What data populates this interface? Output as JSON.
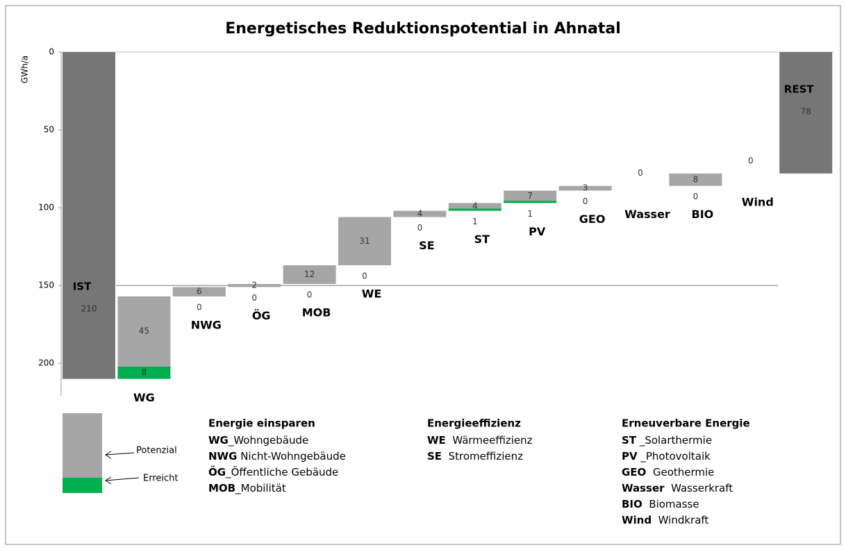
{
  "chart_data": {
    "type": "waterfall",
    "title": "Energetisches Reduktionspotential in Ahnatal",
    "y_label": "GWh/a",
    "categories": [
      "IST",
      "WG",
      "NWG",
      "ÖG",
      "MOB",
      "WE",
      "SE",
      "ST",
      "PV",
      "GEO",
      "Wasser",
      "BIO",
      "Wind",
      "REST"
    ],
    "totals": [
      0,
      13
    ],
    "total_color": "#767676",
    "series": [
      {
        "name": "Erreicht",
        "color": "#00b050",
        "values": [
          null,
          8,
          0,
          0,
          0,
          0,
          0,
          1,
          1,
          0,
          null,
          0,
          null,
          null
        ]
      },
      {
        "name": "Potenzial",
        "color": "#a6a6a6",
        "values": [
          210,
          45,
          6,
          2,
          12,
          31,
          4,
          4,
          7,
          3,
          0,
          8,
          0,
          78
        ]
      }
    ],
    "ylim": [
      0,
      220
    ],
    "inverted": true,
    "yticks": [
      0,
      50,
      100,
      150,
      200
    ],
    "reference_line": 150,
    "glossary": [
      {
        "title": "Energie einsparen",
        "items": [
          {
            "abbr": "WG",
            "text": "_Wohngebäude"
          },
          {
            "abbr": "NWG",
            "text": " Nicht-Wohngebäude"
          },
          {
            "abbr": "ÖG",
            "text": "_Öffentliche Gebäude"
          },
          {
            "abbr": "MOB",
            "text": "_Mobilität"
          }
        ]
      },
      {
        "title": "Energieeffizienz",
        "items": [
          {
            "abbr": "WE",
            "text": "  Wärmeeffizienz"
          },
          {
            "abbr": "SE",
            "text": "  Stromeffizienz"
          }
        ]
      },
      {
        "title": "Erneuverbare Energie",
        "items": [
          {
            "abbr": "ST",
            "text": " _Solarthermie"
          },
          {
            "abbr": "PV",
            "text": " _Photovoltaik"
          },
          {
            "abbr": "GEO",
            "text": "  Geothermie"
          },
          {
            "abbr": "Wasser",
            "text": "  Wasserkraft"
          },
          {
            "abbr": "BIO",
            "text": "  Biomasse"
          },
          {
            "abbr": "Wind",
            "text": "  Windkraft"
          }
        ]
      }
    ]
  }
}
